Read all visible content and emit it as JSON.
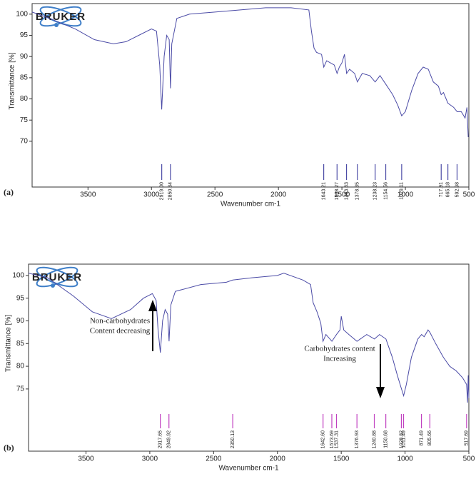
{
  "chart_data": [
    {
      "type": "line",
      "panel": "(a)",
      "logo": "BRUKER",
      "ylabel": "Transmittance [%]",
      "xlabel": "Wavenumber cm-1",
      "xlim": [
        3940,
        500
      ],
      "ylim": [
        59.2,
        102.5
      ],
      "xticks": [
        3500,
        3000,
        2500,
        2000,
        1500,
        1000,
        500
      ],
      "yticks": [
        70,
        75,
        80,
        85,
        90,
        95,
        100
      ],
      "series": [
        {
          "name": null,
          "color": "#4b4ba6",
          "x": [
            3940,
            3800,
            3600,
            3450,
            3300,
            3200,
            3100,
            3000,
            2960,
            2935,
            2919,
            2900,
            2880,
            2860,
            2850,
            2840,
            2800,
            2700,
            2500,
            2300,
            2100,
            1900,
            1760,
            1740,
            1720,
            1700,
            1660,
            1643,
            1620,
            1560,
            1538,
            1520,
            1500,
            1480,
            1463,
            1440,
            1400,
            1378,
            1340,
            1280,
            1238,
            1200,
            1155,
            1100,
            1060,
            1029,
            1000,
            950,
            900,
            860,
            820,
            780,
            740,
            718,
            700,
            665,
            620,
            593,
            560,
            530,
            515,
            505
          ],
          "values": [
            100.5,
            99,
            96.5,
            94,
            93,
            93.5,
            95,
            96.5,
            96,
            88,
            77.5,
            90,
            95,
            94,
            82.5,
            93,
            99,
            100,
            100.5,
            101,
            101.5,
            101.5,
            101,
            96,
            92,
            91,
            90.5,
            87.5,
            89,
            88,
            86,
            87.5,
            88.5,
            90.5,
            86,
            87,
            86,
            84,
            86,
            85.5,
            84,
            85.5,
            83.5,
            81,
            78.5,
            76,
            77,
            82,
            86,
            87.5,
            87,
            84,
            83,
            81,
            81.5,
            79,
            78,
            77,
            77,
            75.5,
            78,
            71
          ]
        }
      ],
      "peak_color": "#4b4ba6",
      "peaks": [
        {
          "value": 2919,
          "label": "2919.00"
        },
        {
          "value": 2850.34,
          "label": "2850.34"
        },
        {
          "value": 1643.21,
          "label": "1643.21"
        },
        {
          "value": 1538.27,
          "label": "1538.27"
        },
        {
          "value": 1463.63,
          "label": "1463.63"
        },
        {
          "value": 1378.35,
          "label": "1378.35"
        },
        {
          "value": 1238.23,
          "label": "1238.23"
        },
        {
          "value": 1154.56,
          "label": "1154.56"
        },
        {
          "value": 1029.11,
          "label": "1029.11"
        },
        {
          "value": 717.91,
          "label": "717.91"
        },
        {
          "value": 665.18,
          "label": "665.18"
        },
        {
          "value": 592.98,
          "label": "592.98"
        }
      ]
    },
    {
      "type": "line",
      "panel": "(b)",
      "logo": "BRUKER",
      "ylabel": "Transmittance [%]",
      "xlabel": "Wavenumber cm-1",
      "xlim": [
        3950,
        500
      ],
      "ylim": [
        61.3,
        102.5
      ],
      "xticks": [
        3500,
        3000,
        2500,
        2000,
        1500,
        1000,
        500
      ],
      "yticks": [
        75,
        80,
        85,
        90,
        95,
        100
      ],
      "series": [
        {
          "name": null,
          "color": "#4b4ba6",
          "x": [
            3950,
            3800,
            3600,
            3450,
            3300,
            3150,
            3050,
            2980,
            2950,
            2935,
            2917,
            2900,
            2880,
            2860,
            2849,
            2835,
            2800,
            2600,
            2400,
            2350,
            2200,
            2000,
            1950,
            1800,
            1740,
            1720,
            1690,
            1660,
            1643,
            1620,
            1573,
            1537,
            1510,
            1500,
            1480,
            1440,
            1377,
            1300,
            1240,
            1200,
            1150,
            1100,
            1060,
            1028,
            1011,
            990,
            950,
            900,
            871,
            850,
            820,
            806,
            760,
            700,
            650,
            600,
            550,
            518,
            510,
            505,
            500
          ],
          "values": [
            100.5,
            99.5,
            95.5,
            92,
            90.5,
            92.5,
            95,
            96,
            94.5,
            88,
            83,
            90,
            92.5,
            91.5,
            85.5,
            93.5,
            96.5,
            98,
            98.5,
            99,
            99.5,
            100,
            100.5,
            99,
            98,
            94,
            92,
            89.5,
            85.5,
            87,
            85.5,
            87,
            88,
            91,
            88,
            87,
            85.5,
            87,
            86,
            87,
            86,
            82,
            78,
            75,
            73.5,
            76,
            82,
            86,
            87,
            86.5,
            88,
            87.5,
            85,
            82,
            80,
            79,
            77.5,
            76,
            72,
            78,
            73
          ]
        }
      ],
      "peak_color": "#c040c0",
      "peaks": [
        {
          "value": 2917.65,
          "label": "2917.65"
        },
        {
          "value": 2849.92,
          "label": "2849.92"
        },
        {
          "value": 2350.13,
          "label": "2350.13"
        },
        {
          "value": 1642.6,
          "label": "1642.60"
        },
        {
          "value": 1573.69,
          "label": "1573.69"
        },
        {
          "value": 1537.31,
          "label": "1537.31"
        },
        {
          "value": 1376.93,
          "label": "1376.93"
        },
        {
          "value": 1240.88,
          "label": "1240.88"
        },
        {
          "value": 1150.68,
          "label": "1150.68"
        },
        {
          "value": 1028.82,
          "label": "1028.82"
        },
        {
          "value": 1011.49,
          "label": "1011.49"
        },
        {
          "value": 871.49,
          "label": "871.49"
        },
        {
          "value": 805.66,
          "label": "805.66"
        },
        {
          "value": 517.69,
          "label": "517.69"
        }
      ],
      "annotations": [
        "Non-carbohydrates",
        "Content decreasing",
        "Carbohydrates content",
        "Increasing"
      ]
    }
  ]
}
